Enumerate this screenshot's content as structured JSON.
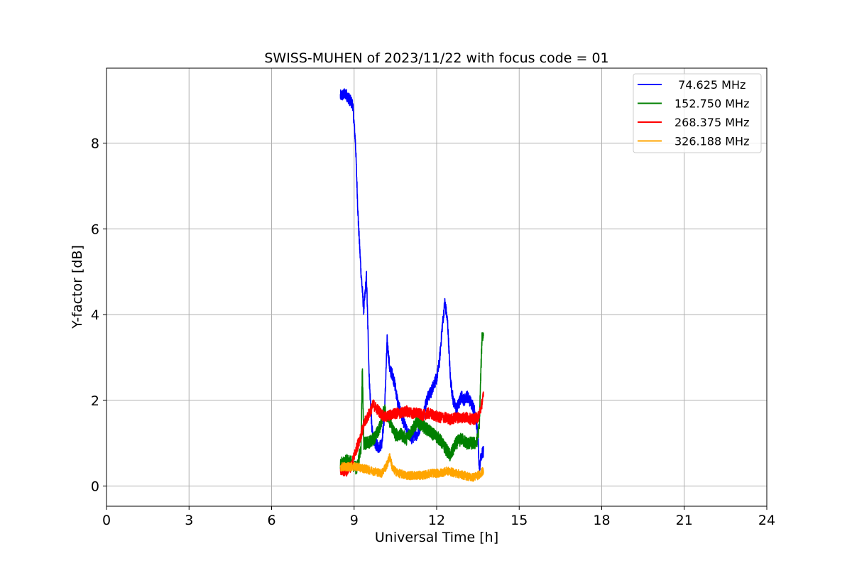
{
  "chart_data": {
    "type": "line",
    "title": "SWISS-MUHEN of 2023/11/22 with focus code = 01",
    "xlabel": "Universal Time [h]",
    "ylabel": "Y-factor [dB]",
    "xlim": [
      0,
      24
    ],
    "ylim": [
      -0.47,
      9.75
    ],
    "xticks": [
      0,
      3,
      6,
      9,
      12,
      15,
      18,
      21,
      24
    ],
    "yticks": [
      0,
      2,
      4,
      6,
      8
    ],
    "grid": true,
    "legend_position": "top-right",
    "series": [
      {
        "name": " 74.625 MHz",
        "color": "#0000ff",
        "noise": 0.14,
        "x": [
          8.5,
          8.7,
          8.8,
          8.95,
          9.05,
          9.15,
          9.25,
          9.35,
          9.45,
          9.55,
          9.65,
          9.75,
          9.9,
          10.0,
          10.1,
          10.2,
          10.3,
          10.4,
          10.5,
          10.6,
          10.7,
          10.8,
          10.9,
          11.0,
          11.1,
          11.2,
          11.3,
          11.4,
          11.5,
          11.6,
          11.7,
          11.8,
          11.9,
          12.0,
          12.1,
          12.2,
          12.3,
          12.4,
          12.5,
          12.6,
          12.7,
          12.8,
          12.9,
          13.0,
          13.1,
          13.2,
          13.3,
          13.4,
          13.5,
          13.55,
          13.6,
          13.7
        ],
        "y": [
          9.1,
          9.15,
          9.05,
          8.9,
          8.0,
          6.2,
          5.0,
          4.1,
          4.9,
          2.5,
          1.3,
          1.0,
          0.9,
          1.0,
          1.6,
          3.4,
          2.7,
          2.6,
          2.3,
          1.9,
          1.7,
          1.5,
          1.3,
          1.2,
          1.1,
          1.2,
          1.2,
          1.4,
          1.6,
          1.9,
          2.1,
          2.2,
          2.4,
          2.5,
          2.9,
          3.7,
          4.3,
          3.8,
          2.5,
          2.0,
          1.8,
          1.9,
          2.1,
          2.0,
          2.1,
          2.0,
          1.9,
          1.7,
          1.2,
          0.3,
          0.7,
          0.8
        ]
      },
      {
        "name": "152.750 MHz",
        "color": "#008000",
        "noise": 0.15,
        "x": [
          8.5,
          8.7,
          8.9,
          9.1,
          9.25,
          9.3,
          9.35,
          9.5,
          9.7,
          9.9,
          10.1,
          10.3,
          10.5,
          10.7,
          10.9,
          11.1,
          11.3,
          11.5,
          11.7,
          11.9,
          12.1,
          12.3,
          12.5,
          12.7,
          12.9,
          13.1,
          13.3,
          13.45,
          13.55,
          13.6,
          13.65,
          13.7
        ],
        "y": [
          0.5,
          0.6,
          0.55,
          0.4,
          0.9,
          2.8,
          1.0,
          1.0,
          1.1,
          1.3,
          1.8,
          1.5,
          1.2,
          1.2,
          1.1,
          1.3,
          1.5,
          1.4,
          1.3,
          1.2,
          1.1,
          0.9,
          0.7,
          1.0,
          1.1,
          1.0,
          1.0,
          1.0,
          1.4,
          2.5,
          3.5,
          3.5
        ]
      },
      {
        "name": "268.375 MHz",
        "color": "#ff0000",
        "noise": 0.13,
        "x": [
          8.5,
          8.7,
          8.9,
          9.0,
          9.1,
          9.2,
          9.3,
          9.4,
          9.55,
          9.7,
          9.9,
          10.1,
          10.3,
          10.5,
          10.7,
          10.9,
          11.1,
          11.3,
          11.5,
          11.7,
          11.9,
          12.1,
          12.3,
          12.5,
          12.7,
          12.9,
          13.1,
          13.3,
          13.5,
          13.6,
          13.7
        ],
        "y": [
          0.4,
          0.35,
          0.45,
          0.7,
          0.9,
          1.1,
          1.3,
          1.5,
          1.7,
          1.9,
          1.75,
          1.6,
          1.65,
          1.7,
          1.7,
          1.75,
          1.7,
          1.7,
          1.65,
          1.7,
          1.65,
          1.6,
          1.6,
          1.55,
          1.6,
          1.6,
          1.6,
          1.55,
          1.6,
          1.8,
          2.1
        ]
      },
      {
        "name": "326.188 MHz",
        "color": "#ffa500",
        "noise": 0.1,
        "x": [
          8.5,
          8.8,
          9.1,
          9.4,
          9.7,
          10.0,
          10.2,
          10.3,
          10.4,
          10.6,
          10.9,
          11.2,
          11.5,
          11.8,
          12.1,
          12.4,
          12.7,
          13.0,
          13.3,
          13.5,
          13.7
        ],
        "y": [
          0.45,
          0.45,
          0.45,
          0.4,
          0.35,
          0.3,
          0.5,
          0.7,
          0.4,
          0.3,
          0.25,
          0.25,
          0.25,
          0.3,
          0.3,
          0.35,
          0.3,
          0.25,
          0.2,
          0.25,
          0.35
        ]
      }
    ]
  }
}
